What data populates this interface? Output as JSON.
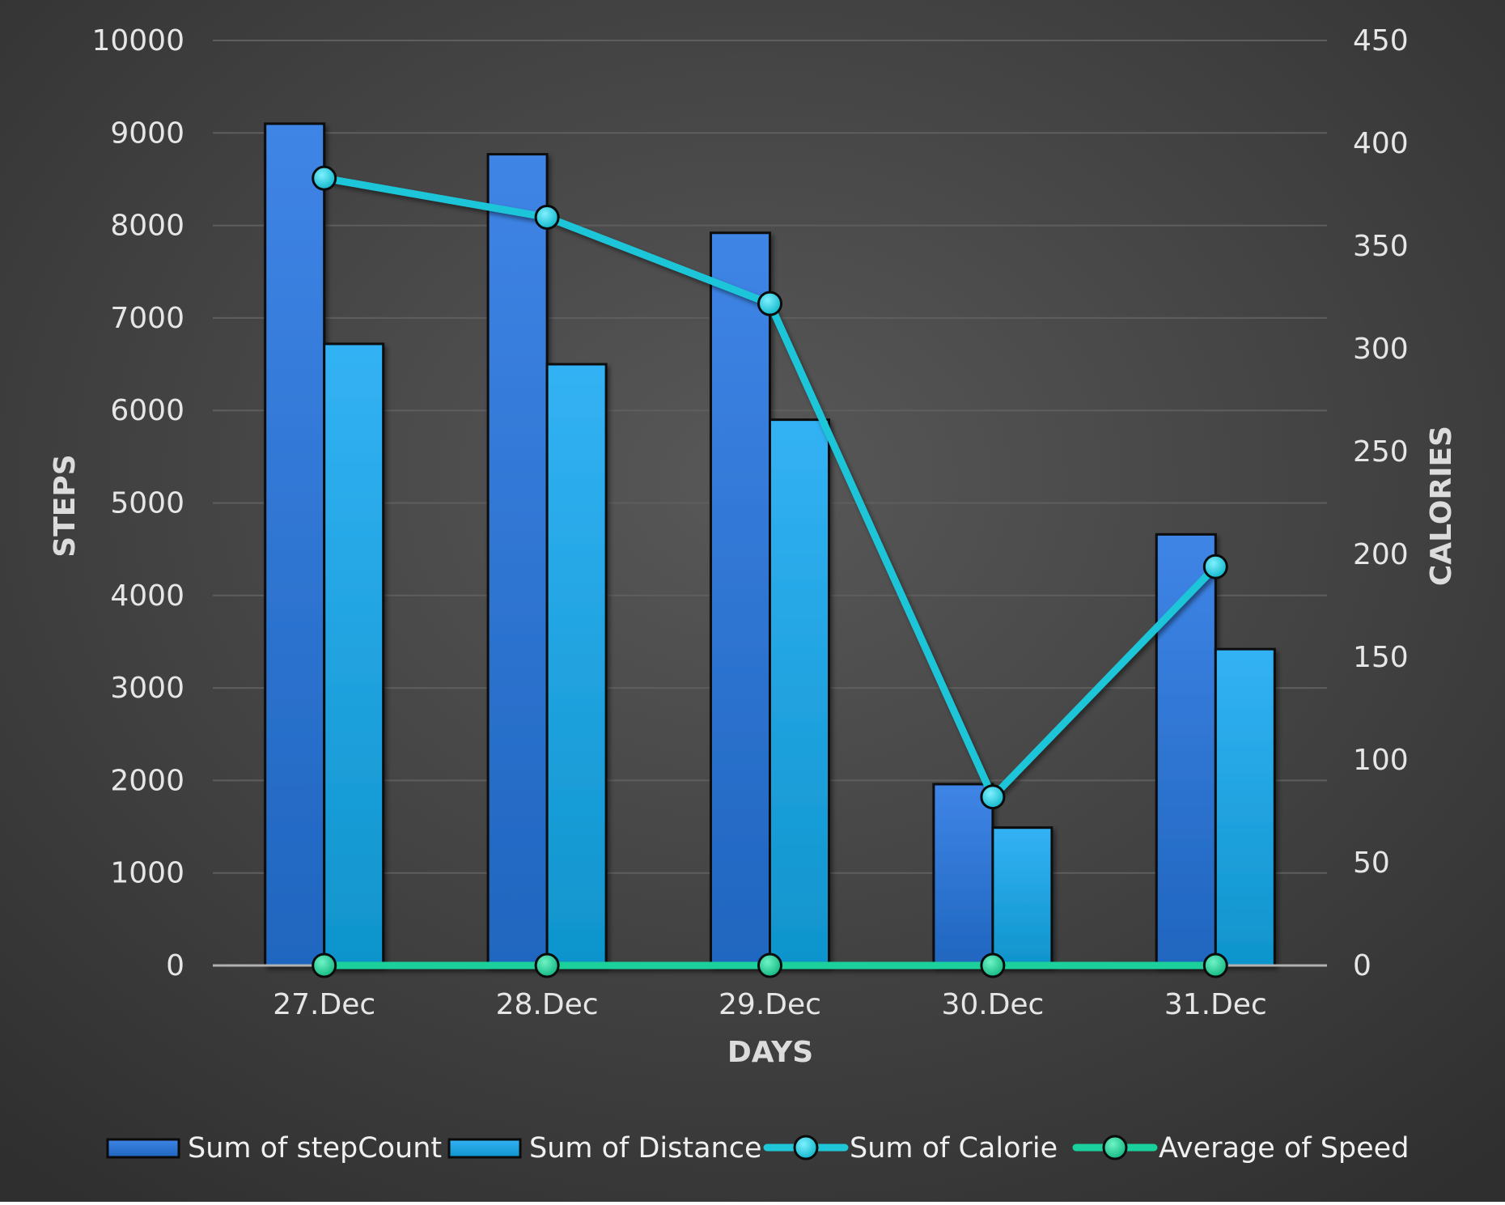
{
  "chart_data": {
    "type": "bar",
    "title": "",
    "categories": [
      "27.Dec",
      "28.Dec",
      "29.Dec",
      "30.Dec",
      "31.Dec"
    ],
    "xlabel": "DAYS",
    "ylabel": "STEPS",
    "y2label": "CALORIES",
    "ylim": [
      0,
      10000
    ],
    "y2lim": [
      0,
      450
    ],
    "yticks": [
      "0",
      "1000",
      "2000",
      "3000",
      "4000",
      "5000",
      "6000",
      "7000",
      "8000",
      "9000",
      "10000"
    ],
    "y2ticks": [
      "0",
      "50",
      "100",
      "150",
      "200",
      "250",
      "300",
      "350",
      "400",
      "450"
    ],
    "grid": true,
    "legend_position": "bottom",
    "series": [
      {
        "name": "Sum of stepCount",
        "type": "bar",
        "axis": "left",
        "color": "#3a7fe0",
        "values": [
          9100,
          8770,
          7920,
          1960,
          4660
        ]
      },
      {
        "name": "Sum of Distance",
        "type": "bar",
        "axis": "left",
        "color": "#2bace8",
        "values": [
          6720,
          6500,
          5900,
          1490,
          3420
        ]
      },
      {
        "name": "Sum of Calorie",
        "type": "line",
        "axis": "right",
        "color": "#1fc6d8",
        "values": [
          383,
          364,
          322,
          82,
          194
        ]
      },
      {
        "name": "Average of Speed",
        "type": "line",
        "axis": "right",
        "color": "#1ad09c",
        "values": [
          0,
          0,
          0,
          0,
          0
        ]
      }
    ]
  },
  "colors": {
    "background_top": "#3a3a3a",
    "background_center": "#555555",
    "grid": "#5e5e5e",
    "baseline": "#b0b0b0",
    "text": "#e6e6e6"
  }
}
